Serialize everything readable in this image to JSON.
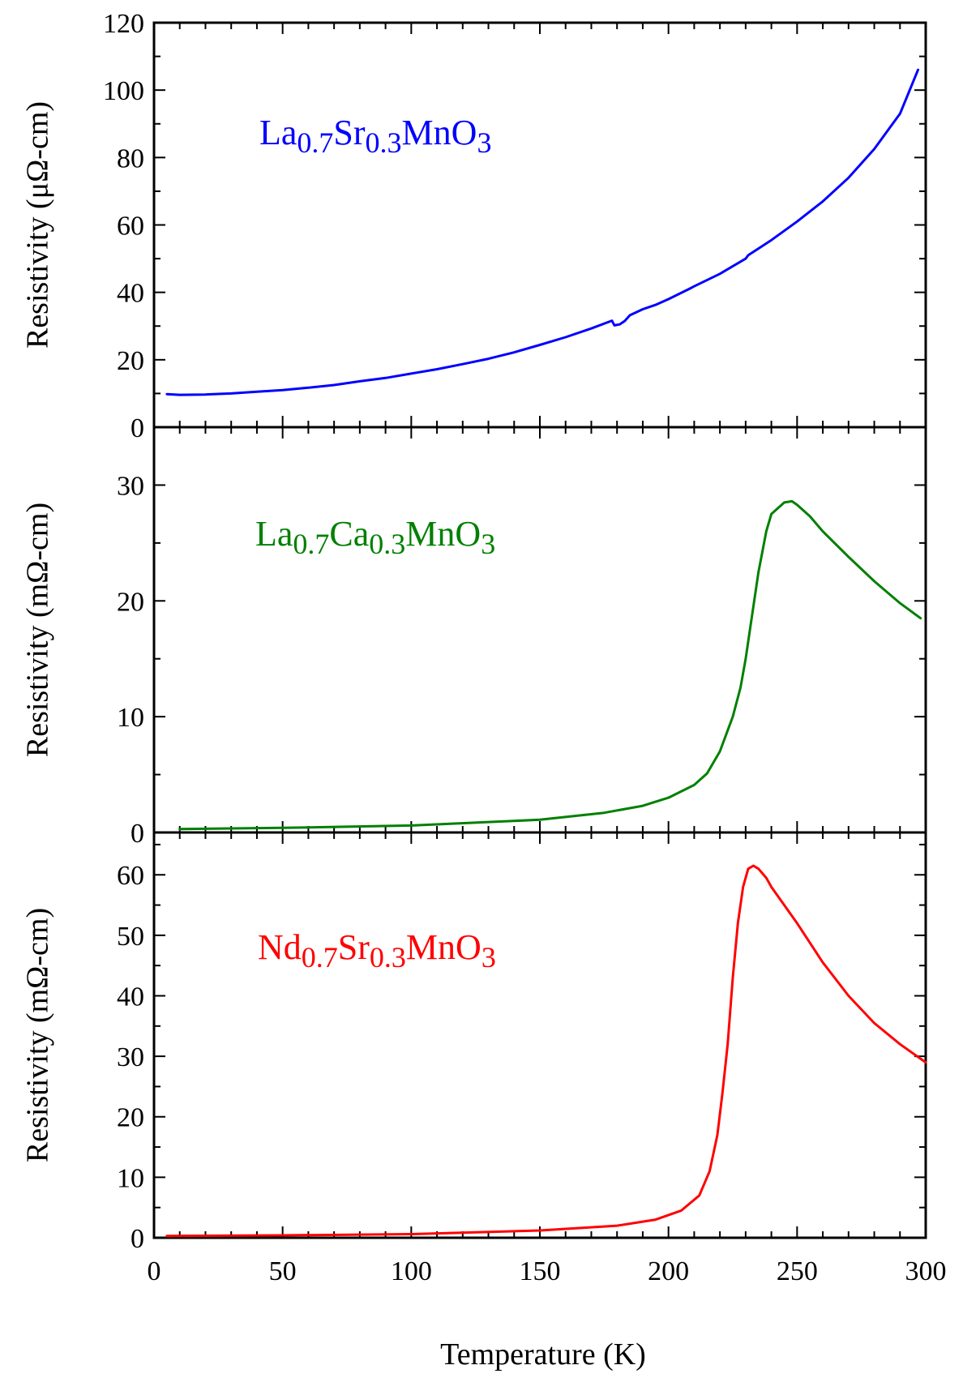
{
  "chart_data": [
    {
      "type": "line",
      "ylabel": "Resistivity (μΩ-cm)",
      "xlabel": "",
      "xlim": [
        0,
        300
      ],
      "ylim": [
        0,
        120
      ],
      "yticks": [
        0,
        20,
        40,
        60,
        80,
        100,
        120
      ],
      "yticks_labels": [
        "0",
        "20",
        "40",
        "60",
        "80",
        "100",
        "120"
      ],
      "grid": false,
      "series": [
        {
          "name": "La0.7Sr0.3MnO3",
          "label": {
            "base1": "La",
            "sub1": "0.7",
            "base2": "Sr",
            "sub2": "0.3",
            "base3": "MnO",
            "sub3": "3"
          },
          "color": "#0000ff",
          "x": [
            5,
            10,
            20,
            30,
            40,
            50,
            60,
            70,
            80,
            90,
            100,
            110,
            120,
            130,
            140,
            150,
            160,
            170,
            178,
            179,
            181,
            183,
            185,
            190,
            195,
            200,
            208,
            210,
            220,
            230,
            231,
            240,
            250,
            260,
            270,
            280,
            290,
            297
          ],
          "y": [
            9.8,
            9.6,
            9.7,
            10,
            10.5,
            11,
            11.7,
            12.5,
            13.6,
            14.6,
            15.9,
            17.2,
            18.7,
            20.3,
            22.2,
            24.4,
            26.7,
            29.3,
            31.6,
            30.2,
            30.5,
            31.5,
            33.2,
            35,
            36.3,
            38,
            41,
            41.8,
            45.5,
            50,
            51,
            55.5,
            61,
            67,
            74,
            82.5,
            93,
            106
          ]
        }
      ]
    },
    {
      "type": "line",
      "ylabel": "Resistivity (mΩ-cm)",
      "xlabel": "",
      "xlim": [
        0,
        300
      ],
      "ylim": [
        0,
        35
      ],
      "yticks": [
        0,
        10,
        20,
        30
      ],
      "yticks_labels": [
        "0",
        "10",
        "20",
        "30"
      ],
      "grid": false,
      "series": [
        {
          "name": "La0.7Ca0.3MnO3",
          "label": {
            "base1": "La",
            "sub1": "0.7",
            "base2": "Ca",
            "sub2": "0.3",
            "base3": "MnO",
            "sub3": "3"
          },
          "color": "#008000",
          "x": [
            10,
            50,
            100,
            150,
            175,
            190,
            200,
            210,
            215,
            220,
            225,
            228,
            230,
            232,
            235,
            238,
            240,
            245,
            248,
            250,
            255,
            260,
            270,
            280,
            290,
            298
          ],
          "y": [
            0.3,
            0.4,
            0.6,
            1.1,
            1.7,
            2.3,
            3,
            4.1,
            5.1,
            7,
            10,
            12.5,
            15,
            18,
            22.5,
            26,
            27.5,
            28.5,
            28.6,
            28.3,
            27.3,
            26,
            23.8,
            21.7,
            19.8,
            18.5
          ]
        }
      ]
    },
    {
      "type": "line",
      "ylabel": "Resistivity (mΩ-cm)",
      "xlabel": "Temperature (K)",
      "xlim": [
        0,
        300
      ],
      "ylim": [
        0,
        67
      ],
      "xticks": [
        0,
        50,
        100,
        150,
        200,
        250,
        300
      ],
      "xticks_labels": [
        "0",
        "50",
        "100",
        "150",
        "200",
        "250",
        "300"
      ],
      "yticks": [
        0,
        10,
        20,
        30,
        40,
        50,
        60
      ],
      "yticks_labels": [
        "0",
        "10",
        "20",
        "30",
        "40",
        "50",
        "60"
      ],
      "grid": false,
      "series": [
        {
          "name": "Nd0.7Sr0.3MnO3",
          "label": {
            "base1": "Nd",
            "sub1": "0.7",
            "base2": "Sr",
            "sub2": "0.3",
            "base3": "MnO",
            "sub3": "3"
          },
          "color": "#ff0000",
          "x": [
            5,
            50,
            100,
            150,
            180,
            195,
            205,
            212,
            216,
            219,
            221,
            223,
            225,
            227,
            229,
            231,
            233,
            235,
            238,
            240,
            245,
            250,
            260,
            270,
            280,
            290,
            300
          ],
          "y": [
            0.3,
            0.4,
            0.6,
            1.2,
            2,
            3,
            4.5,
            7,
            11,
            17,
            24,
            32,
            43,
            52,
            58,
            61,
            61.5,
            61,
            59.5,
            58,
            55,
            52,
            45.5,
            40,
            35.5,
            32,
            29
          ]
        }
      ]
    }
  ]
}
